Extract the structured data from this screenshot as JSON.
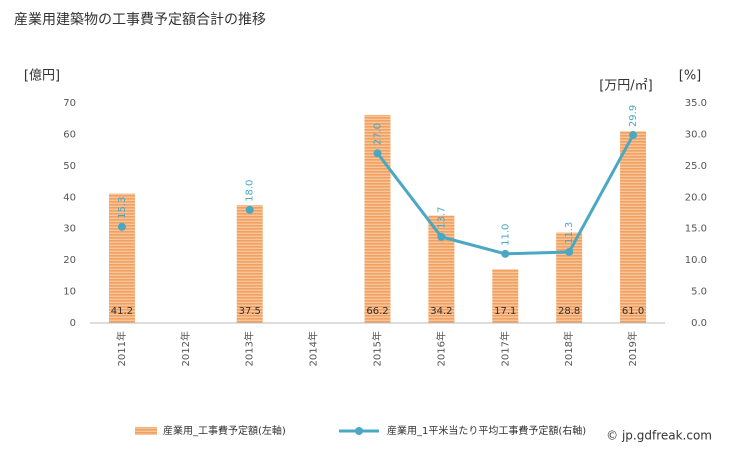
{
  "chart_data": {
    "type": "bar-line",
    "title": "産業用建築物の工事費予定額合計の推移",
    "ylabel": "[億円]",
    "y2label": "[万円/㎡]",
    "y2label_alt": "[%]",
    "categories": [
      "2011年",
      "2012年",
      "2013年",
      "2014年",
      "2015年",
      "2016年",
      "2017年",
      "2018年",
      "2019年"
    ],
    "series": [
      {
        "name": "産業用_工事費予定額(左軸)",
        "type": "bar",
        "color": "#f0a060",
        "values": [
          41.2,
          null,
          37.5,
          null,
          66.2,
          34.2,
          17.1,
          28.8,
          61.0
        ],
        "value_labels": [
          "41.2",
          null,
          "37.5",
          null,
          "66.2",
          "34.2",
          "17.1",
          "28.8",
          "61.0"
        ]
      },
      {
        "name": "産業用_1平米当たり平均工事費予定額(右軸)",
        "type": "line",
        "axis": "y2",
        "color": "#4aa8c4",
        "values": [
          15.3,
          null,
          18.0,
          null,
          27.0,
          13.7,
          11.0,
          11.3,
          29.9
        ],
        "value_labels": [
          "15.3",
          null,
          "18.0",
          null,
          "27.0",
          "13.7",
          "11.0",
          "11.3",
          "29.9"
        ]
      }
    ],
    "ylim": [
      0,
      70
    ],
    "yticks": [
      0,
      10,
      20,
      30,
      40,
      50,
      60,
      70
    ],
    "y2lim": [
      0,
      35
    ],
    "y2ticks": [
      {
        "value": 0,
        "label": "0.0"
      },
      {
        "value": 5,
        "label": "5.0"
      },
      {
        "value": 10,
        "label": "10.0"
      },
      {
        "value": 15,
        "label": "15.0"
      },
      {
        "value": 20,
        "label": "20.0"
      },
      {
        "value": 25,
        "label": "25.0"
      },
      {
        "value": 30,
        "label": "30.0"
      },
      {
        "value": 35,
        "label": "35.0"
      }
    ],
    "grid": false,
    "legend": "bottom",
    "source": "© jp.gdfreak.com"
  }
}
